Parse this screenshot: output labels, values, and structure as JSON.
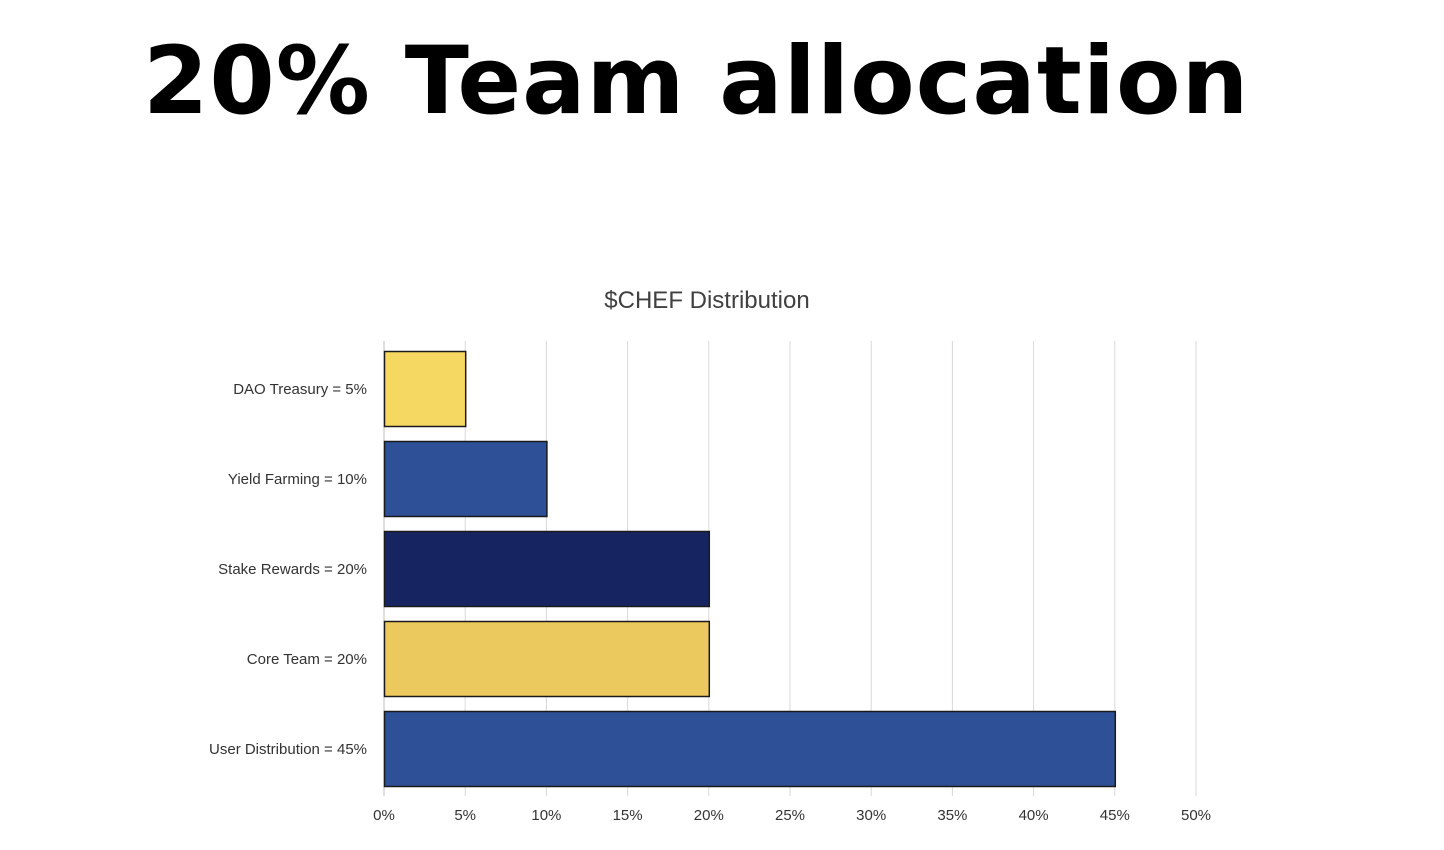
{
  "slide": {
    "headline": "20% Team allocation"
  },
  "chart_data": {
    "type": "bar",
    "orientation": "horizontal",
    "title": "$CHEF Distribution",
    "categories": [
      "DAO Treasury = 5%",
      "Yield Farming = 10%",
      "Stake Rewards = 20%",
      "Core Team = 20%",
      "User Distribution = 45%"
    ],
    "values": [
      5,
      10,
      20,
      20,
      45
    ],
    "bar_colors": [
      "#f4d862",
      "#2e5096",
      "#162462",
      "#ecc95e",
      "#2e5096"
    ],
    "bar_border_color": "#1a1a1a",
    "xlim": [
      0,
      50
    ],
    "x_ticks": [
      0,
      5,
      10,
      15,
      20,
      25,
      30,
      35,
      40,
      45,
      50
    ],
    "x_tick_suffix": "%",
    "grid": "vertical",
    "grid_color": "#d9d9d9",
    "legend": "none",
    "xlabel": "",
    "ylabel": ""
  }
}
